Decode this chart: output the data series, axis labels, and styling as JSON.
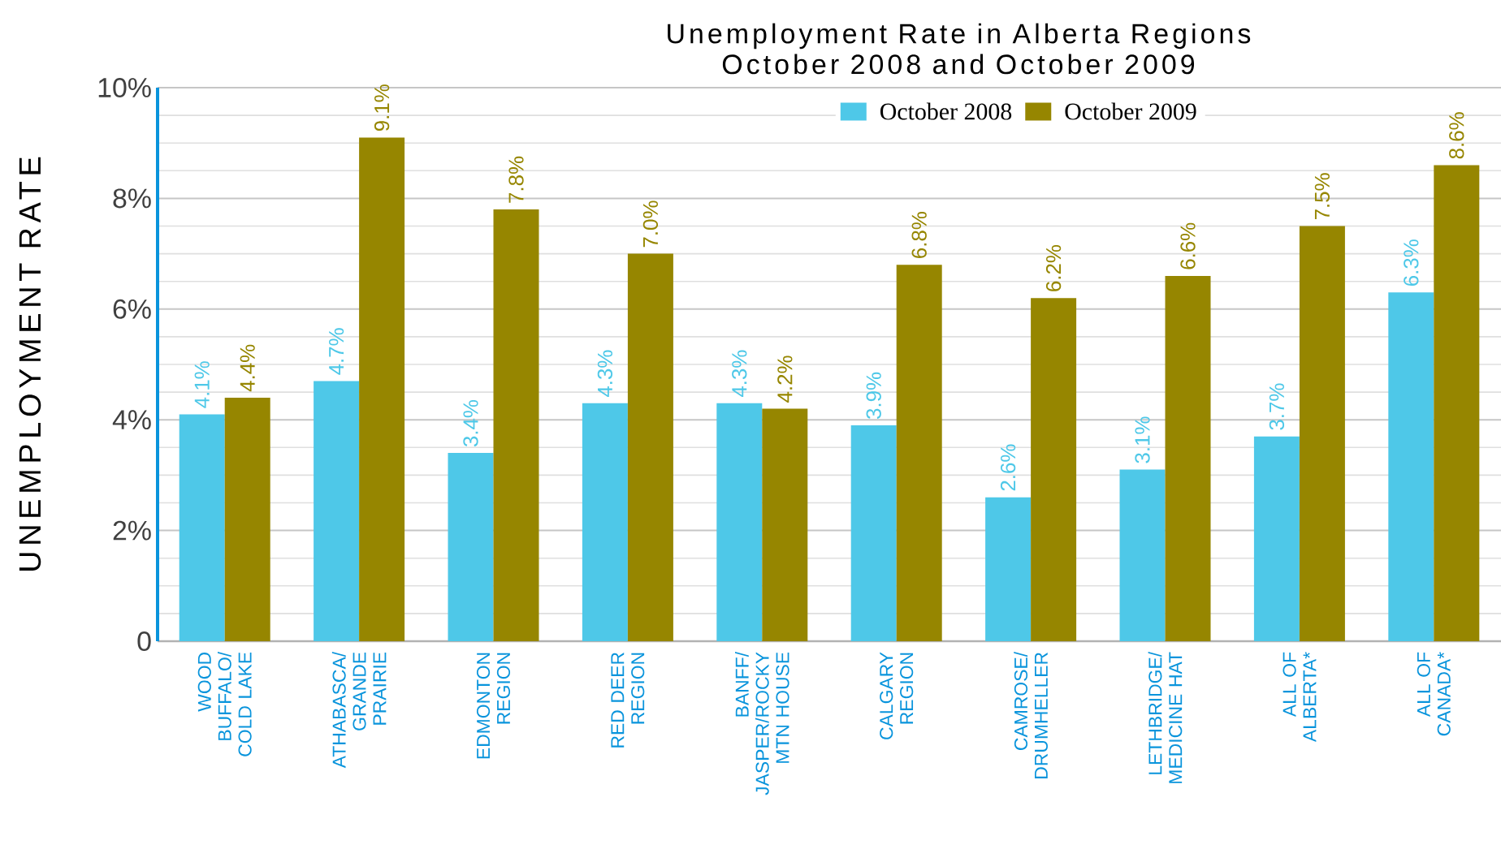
{
  "chart_data": {
    "type": "bar",
    "title": "Unemployment Rate in Alberta Regions",
    "subtitle": "October 2008 and October 2009",
    "ylabel": "UNEMPLOYMENT RATE",
    "categories": [
      "WOOD BUFFALO/ COLD LAKE",
      "ATHABASCA/ GRANDE PRAIRIE",
      "EDMONTON REGION",
      "RED DEER REGION",
      "BANFF/ JASPER/ROCKY MTN HOUSE",
      "CALGARY REGION",
      "CAMROSE/ DRUMHELLER",
      "LETHBRIDGE/ MEDICINE HAT",
      "ALL OF ALBERTA*",
      "ALL OF CANADA*"
    ],
    "series": [
      {
        "name": "October 2008",
        "color": "#4ec8e8",
        "values": [
          4.1,
          4.7,
          3.4,
          4.3,
          4.3,
          3.9,
          2.6,
          3.1,
          3.7,
          6.3
        ],
        "value_labels": [
          "4.1%",
          "4.7%",
          "3.4%",
          "4.3%",
          "4.3%",
          "3.9%",
          "2.6%",
          "3.1%",
          "3.7%",
          "6.3%"
        ]
      },
      {
        "name": "October 2009",
        "color": "#968600",
        "values": [
          4.4,
          9.1,
          7.8,
          7.0,
          4.2,
          6.8,
          6.2,
          6.6,
          7.5,
          8.6
        ],
        "value_labels": [
          "4.4%",
          "9.1%",
          "7.8%",
          "7.0%",
          "4.2%",
          "6.8%",
          "6.2%",
          "6.6%",
          "7.5%",
          "8.6%"
        ]
      }
    ],
    "ylim": [
      0,
      10
    ],
    "yticks": [
      {
        "value": 0,
        "label": "0"
      },
      {
        "value": 2,
        "label": "2%"
      },
      {
        "value": 4,
        "label": "4%"
      },
      {
        "value": 6,
        "label": "6%"
      },
      {
        "value": 8,
        "label": "8%"
      },
      {
        "value": 10,
        "label": "10%"
      }
    ],
    "grid": "y",
    "legend": "top right"
  }
}
